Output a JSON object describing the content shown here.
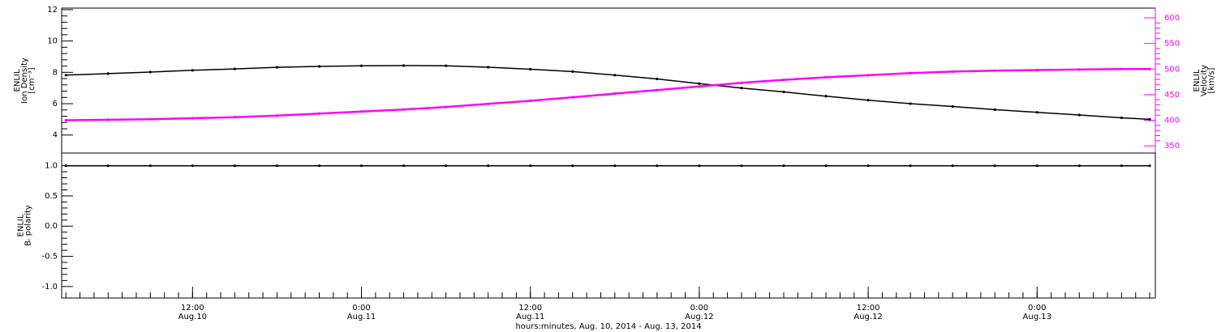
{
  "chart_data": [
    {
      "type": "line",
      "ylabel": [
        "ENLIL",
        "Ion Density",
        "[cm⁻³]"
      ],
      "y2label": [
        "ENLIL",
        "Velocity",
        "[km/s]"
      ],
      "x": [
        3,
        6,
        9,
        12,
        15,
        18,
        21,
        24,
        27,
        30,
        33,
        36,
        39,
        42,
        45,
        48,
        51,
        54,
        57,
        60,
        63,
        66,
        69,
        72,
        75,
        78,
        80
      ],
      "xlim": [
        2.7,
        80.4
      ],
      "ylim": [
        2.85,
        12.1
      ],
      "yticks": [
        4,
        6,
        8,
        10,
        12
      ],
      "y2lim": [
        336,
        619
      ],
      "y2ticks": [
        350,
        400,
        450,
        500,
        550,
        600
      ],
      "series": [
        {
          "name": "Ion Density",
          "color": "#000000",
          "values": [
            7.82,
            7.92,
            8.02,
            8.13,
            8.22,
            8.32,
            8.38,
            8.42,
            8.43,
            8.42,
            8.33,
            8.2,
            8.05,
            7.82,
            7.58,
            7.28,
            7.0,
            6.75,
            6.48,
            6.22,
            6.0,
            5.82,
            5.62,
            5.45,
            5.28,
            5.1,
            5.0
          ]
        },
        {
          "name": "Velocity",
          "color": "#ff00ff",
          "axis": "y2",
          "values": [
            400,
            401,
            402,
            404,
            406,
            409,
            413,
            417,
            421,
            426,
            432,
            438,
            445,
            452,
            459,
            466,
            473,
            479,
            484,
            488,
            492,
            495,
            497,
            498,
            499,
            500,
            500
          ]
        }
      ]
    },
    {
      "type": "line",
      "ylabel": [
        "ENLIL",
        "Bᵣ polarity"
      ],
      "xlabel": "hours:minutes, Aug. 10, 2014 - Aug. 13, 2014",
      "x": [
        3,
        6,
        9,
        12,
        15,
        18,
        21,
        24,
        27,
        30,
        33,
        36,
        39,
        42,
        45,
        48,
        51,
        54,
        57,
        60,
        63,
        66,
        69,
        72,
        75,
        78,
        80
      ],
      "xlim": [
        2.7,
        80.4
      ],
      "xticks": [
        {
          "value": 12,
          "label": [
            "12:00",
            "Aug.10"
          ]
        },
        {
          "value": 24,
          "label": [
            "0:00",
            "Aug.11"
          ]
        },
        {
          "value": 36,
          "label": [
            "12:00",
            "Aug.11"
          ]
        },
        {
          "value": 48,
          "label": [
            "0:00",
            "Aug.12"
          ]
        },
        {
          "value": 60,
          "label": [
            "12:00",
            "Aug.12"
          ]
        },
        {
          "value": 72,
          "label": [
            "0:00",
            "Aug.13"
          ]
        }
      ],
      "ylim": [
        -1.19,
        1.21
      ],
      "yticks": [
        {
          "value": -1,
          "label": "-1.0"
        },
        {
          "value": -0.5,
          "label": "-0.5"
        },
        {
          "value": 0,
          "label": "0.0"
        },
        {
          "value": 0.5,
          "label": "0.5"
        },
        {
          "value": 1,
          "label": "1.0"
        }
      ],
      "series": [
        {
          "name": "Br polarity",
          "color": "#000000",
          "values": [
            1,
            1,
            1,
            1,
            1,
            1,
            1,
            1,
            1,
            1,
            1,
            1,
            1,
            1,
            1,
            1,
            1,
            1,
            1,
            1,
            1,
            1,
            1,
            1,
            1,
            1,
            1
          ]
        }
      ]
    }
  ]
}
